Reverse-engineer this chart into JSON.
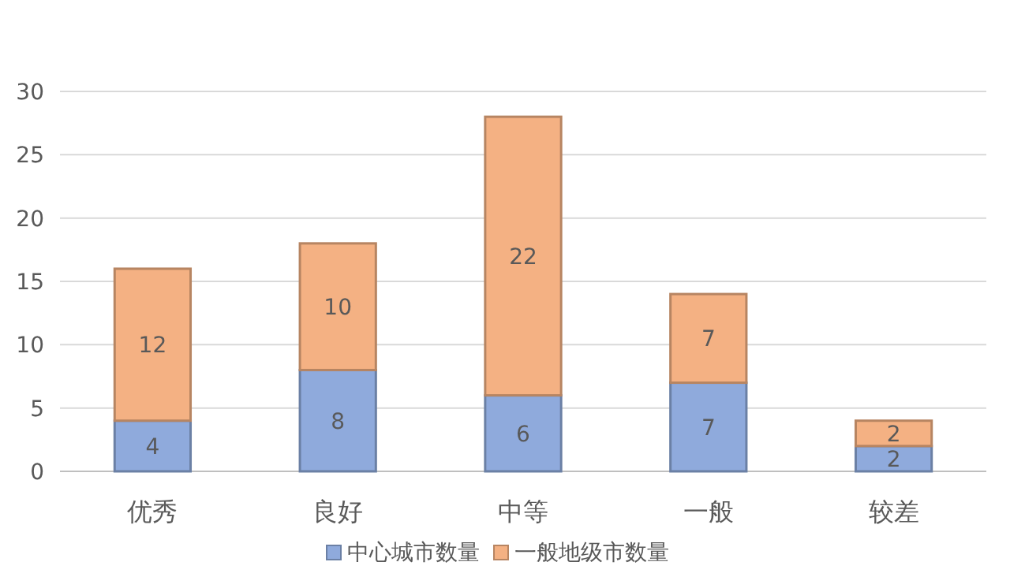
{
  "chart_data": {
    "type": "bar",
    "stacked": true,
    "categories": [
      "优秀",
      "良好",
      "中等",
      "一般",
      "较差"
    ],
    "series": [
      {
        "name": "中心城市数量",
        "color": "#8faadc",
        "values": [
          4,
          8,
          6,
          7,
          2
        ]
      },
      {
        "name": "一般地级市数量",
        "color": "#f4b183",
        "values": [
          12,
          10,
          22,
          7,
          2
        ]
      }
    ],
    "ylim": [
      0,
      30
    ],
    "yticks": [
      0,
      5,
      10,
      15,
      20,
      25,
      30
    ],
    "grid": "y",
    "legend": "bottom",
    "data_labels": true
  }
}
